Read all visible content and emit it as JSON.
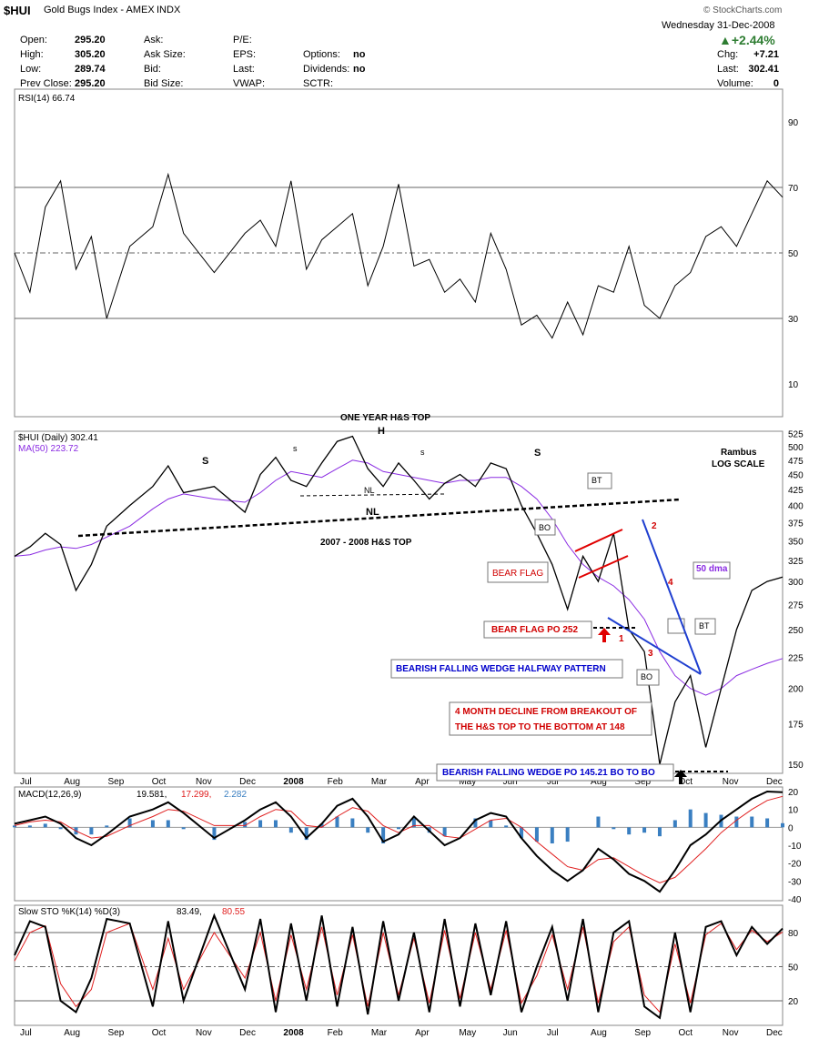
{
  "header": {
    "symbol": "$HUI",
    "name": "Gold Bugs Index - AMEX",
    "type": "INDX",
    "brand": "© StockCharts.com",
    "date": "Wednesday   31-Dec-2008",
    "change_pct": "+2.44%",
    "rows": [
      {
        "l1": "Open:",
        "v1": "295.20",
        "l2": "Ask:",
        "l3": "P/E:",
        "l4": "",
        "v4": ""
      },
      {
        "l1": "High:",
        "v1": "305.20",
        "l2": "Ask Size:",
        "l3": "EPS:",
        "l4": "Options:",
        "v4": "no"
      },
      {
        "l1": "Low:",
        "v1": "289.74",
        "l2": "Bid:",
        "l3": "Last:",
        "l4": "Dividends:",
        "v4": "no"
      },
      {
        "l1": "Prev Close:",
        "v1": "295.20",
        "l2": "Bid Size:",
        "l3": "VWAP:",
        "l4": "SCTR:",
        "v4": ""
      }
    ],
    "right": [
      {
        "label": "Chg:",
        "value": "+7.21"
      },
      {
        "label": "Last:",
        "value": "302.41"
      },
      {
        "label": "Volume:",
        "value": "0"
      }
    ],
    "up_color": "#2e7d32"
  },
  "chart_data": [
    {
      "type": "line",
      "title": "RSI(14) 66.74",
      "ylim": [
        0,
        100
      ],
      "yticks": [
        90,
        70,
        50,
        30,
        10
      ],
      "reference_lines": [
        70,
        50,
        30
      ],
      "x": [
        0,
        2,
        4,
        6,
        8,
        10,
        12,
        15,
        18,
        20,
        22,
        26,
        30,
        32,
        34,
        36,
        38,
        40,
        42,
        44,
        46,
        48,
        50,
        52,
        54,
        56,
        58,
        60,
        62,
        64,
        66,
        68,
        70,
        72,
        74,
        76,
        78,
        80,
        82,
        84,
        86,
        88,
        90,
        92,
        94,
        96,
        98,
        100
      ],
      "values": [
        50,
        38,
        64,
        72,
        45,
        55,
        30,
        52,
        58,
        74,
        56,
        44,
        56,
        60,
        52,
        72,
        45,
        54,
        58,
        62,
        40,
        52,
        71,
        46,
        48,
        38,
        42,
        35,
        56,
        45,
        28,
        31,
        24,
        35,
        25,
        40,
        38,
        52,
        34,
        30,
        40,
        44,
        55,
        58,
        52,
        62,
        72,
        67
      ],
      "overbought_color": "#3a6e3a",
      "oversold_color": "#8a5050"
    },
    {
      "type": "line",
      "title": "$HUI (Daily) 302.41",
      "ma_label": "MA(50) 223.72",
      "scale": "log",
      "ylim": [
        145,
        530
      ],
      "yticks": [
        525,
        500,
        475,
        450,
        425,
        400,
        375,
        350,
        325,
        300,
        275,
        250,
        225,
        200,
        175,
        150
      ],
      "x_labels": [
        "Jul",
        "Aug",
        "Sep",
        "Oct",
        "Nov",
        "Dec",
        "2008",
        "Feb",
        "Mar",
        "Apr",
        "May",
        "Jun",
        "Jul",
        "Aug",
        "Sep",
        "Oct",
        "Nov",
        "Dec"
      ],
      "x": [
        0,
        2,
        4,
        6,
        8,
        10,
        12,
        15,
        18,
        20,
        22,
        26,
        30,
        32,
        34,
        36,
        38,
        40,
        42,
        44,
        46,
        48,
        50,
        52,
        54,
        56,
        58,
        60,
        62,
        64,
        66,
        68,
        70,
        72,
        74,
        76,
        78,
        80,
        82,
        84,
        86,
        88,
        90,
        92,
        94,
        96,
        98,
        100
      ],
      "price": [
        330,
        342,
        360,
        345,
        290,
        320,
        370,
        400,
        430,
        465,
        420,
        430,
        390,
        450,
        480,
        440,
        430,
        470,
        510,
        520,
        460,
        430,
        470,
        440,
        410,
        435,
        450,
        430,
        470,
        460,
        400,
        360,
        320,
        270,
        330,
        300,
        360,
        250,
        230,
        150,
        190,
        210,
        160,
        200,
        250,
        290,
        300,
        305
      ],
      "ma50": [
        330,
        332,
        338,
        342,
        340,
        345,
        355,
        370,
        395,
        410,
        418,
        410,
        405,
        420,
        440,
        455,
        450,
        445,
        460,
        475,
        470,
        455,
        450,
        445,
        440,
        435,
        440,
        440,
        445,
        445,
        430,
        410,
        380,
        345,
        320,
        305,
        295,
        280,
        260,
        230,
        210,
        200,
        195,
        200,
        210,
        215,
        220,
        224
      ],
      "ma_color": "#8a2be2",
      "annotations": [
        "ONE YEAR H&S TOP",
        "H",
        "S",
        "S",
        "s",
        "s",
        "NL",
        "NL",
        "2007 - 2008 H&S TOP",
        "Rambus",
        "LOG SCALE",
        "BT",
        "BO",
        "BEAR FLAG",
        "BEAR FLAG PO 252",
        "50 dma",
        "BT",
        "BO",
        "1",
        "2",
        "3",
        "4",
        "BEARISH FALLING WEDGE HALFWAY PATTERN",
        "4 MONTH DECLINE FROM BREAKOUT OF",
        "THE H&S TOP TO THE BOTTOM AT 148",
        "BEARISH FALLING WEDGE PO 145.21 BO TO BO"
      ]
    },
    {
      "type": "line",
      "title": "MACD(12,26,9)",
      "values_label": [
        "19.581,",
        "17.299,",
        "2.282"
      ],
      "ylim": [
        -40,
        20
      ],
      "yticks": [
        20,
        10,
        0,
        -10,
        -20,
        -30,
        -40
      ],
      "x": [
        0,
        2,
        4,
        6,
        8,
        10,
        12,
        15,
        18,
        20,
        22,
        26,
        30,
        32,
        34,
        36,
        38,
        40,
        42,
        44,
        46,
        48,
        50,
        52,
        54,
        56,
        58,
        60,
        62,
        64,
        66,
        68,
        70,
        72,
        74,
        76,
        78,
        80,
        82,
        84,
        86,
        88,
        90,
        92,
        94,
        96,
        98,
        100
      ],
      "macd": [
        2,
        4,
        6,
        2,
        -6,
        -10,
        -4,
        6,
        10,
        14,
        8,
        -6,
        4,
        10,
        14,
        6,
        -6,
        2,
        12,
        16,
        6,
        -8,
        -4,
        6,
        -2,
        -10,
        -6,
        4,
        8,
        6,
        -6,
        -16,
        -24,
        -30,
        -24,
        -12,
        -18,
        -26,
        -30,
        -36,
        -24,
        -10,
        -4,
        4,
        10,
        16,
        20,
        19.6
      ],
      "signal": [
        1,
        3,
        4,
        3,
        -2,
        -6,
        -5,
        1,
        6,
        10,
        9,
        1,
        1,
        6,
        10,
        9,
        1,
        0,
        6,
        11,
        9,
        1,
        -3,
        1,
        1,
        -5,
        -6,
        -1,
        4,
        5,
        0,
        -8,
        -15,
        -22,
        -24,
        -18,
        -17,
        -22,
        -27,
        -31,
        -28,
        -20,
        -12,
        -3,
        4,
        10,
        15,
        17.3
      ],
      "macd_color": "#000000",
      "signal_color": "#e02020",
      "hist_color": "#3a7fc1"
    },
    {
      "type": "line",
      "title": "Slow STO %K(14) %D(3)",
      "values_label": [
        "83.49,",
        "80.55"
      ],
      "ylim": [
        0,
        100
      ],
      "yticks": [
        80,
        50,
        20
      ],
      "reference_lines": [
        80,
        50,
        20
      ],
      "x": [
        0,
        2,
        4,
        6,
        8,
        10,
        12,
        15,
        18,
        20,
        22,
        26,
        30,
        32,
        34,
        36,
        38,
        40,
        42,
        44,
        46,
        48,
        50,
        52,
        54,
        56,
        58,
        60,
        62,
        64,
        66,
        68,
        70,
        72,
        74,
        76,
        78,
        80,
        82,
        84,
        86,
        88,
        90,
        92,
        94,
        96,
        98,
        100
      ],
      "k": [
        60,
        90,
        85,
        20,
        10,
        40,
        92,
        88,
        15,
        90,
        20,
        95,
        30,
        92,
        10,
        88,
        20,
        95,
        15,
        85,
        8,
        90,
        20,
        80,
        10,
        92,
        15,
        88,
        25,
        90,
        10,
        50,
        85,
        20,
        92,
        10,
        80,
        90,
        15,
        5,
        80,
        10,
        85,
        90,
        60,
        85,
        70,
        83.5
      ],
      "d": [
        55,
        80,
        86,
        35,
        15,
        30,
        80,
        88,
        30,
        75,
        30,
        80,
        40,
        80,
        20,
        78,
        30,
        85,
        25,
        78,
        15,
        80,
        25,
        75,
        18,
        82,
        22,
        80,
        30,
        82,
        18,
        42,
        78,
        30,
        85,
        18,
        72,
        85,
        25,
        10,
        70,
        18,
        78,
        88,
        65,
        82,
        72,
        80.5
      ],
      "k_color": "#000000",
      "d_color": "#e02020"
    }
  ]
}
